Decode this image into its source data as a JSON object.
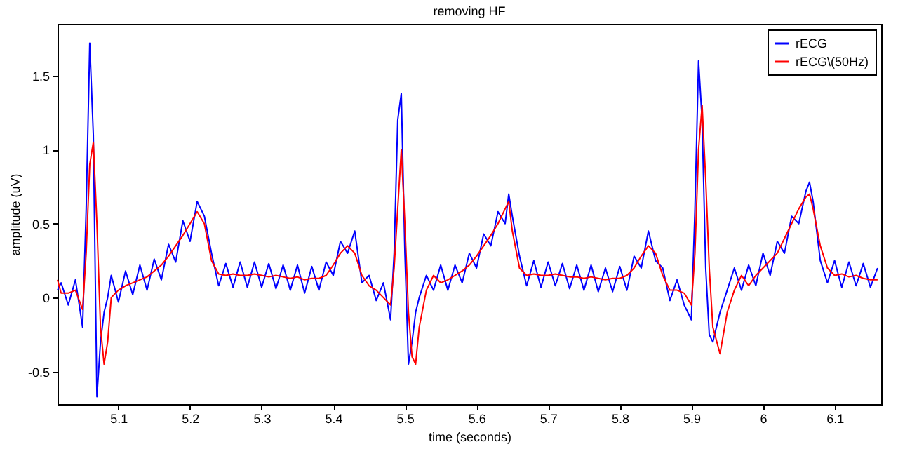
{
  "chart_data": {
    "type": "line",
    "title": "removing HF",
    "xlabel": "time (seconds)",
    "ylabel": "amplitude (uV)",
    "xlim": [
      5.015,
      6.165
    ],
    "xticks": [
      5.1,
      5.2,
      5.3,
      5.4,
      5.5,
      5.6,
      5.7,
      5.8,
      5.9,
      6,
      6.1
    ],
    "ylim": [
      -0.72,
      1.85
    ],
    "yticks": [
      -0.5,
      0,
      0.5,
      1,
      1.5
    ],
    "grid": false,
    "legend": "top right",
    "marker": "none",
    "line_style": "solid",
    "series": [
      {
        "name": "rECG",
        "color": "#0000ff",
        "x": [
          5.015,
          5.02,
          5.03,
          5.04,
          5.05,
          5.055,
          5.06,
          5.065,
          5.07,
          5.075,
          5.08,
          5.085,
          5.09,
          5.1,
          5.11,
          5.12,
          5.13,
          5.14,
          5.15,
          5.16,
          5.17,
          5.18,
          5.19,
          5.2,
          5.21,
          5.22,
          5.23,
          5.24,
          5.25,
          5.26,
          5.27,
          5.28,
          5.29,
          5.3,
          5.31,
          5.32,
          5.33,
          5.34,
          5.35,
          5.36,
          5.37,
          5.38,
          5.39,
          5.4,
          5.41,
          5.42,
          5.43,
          5.44,
          5.45,
          5.46,
          5.47,
          5.48,
          5.485,
          5.49,
          5.495,
          5.5,
          5.505,
          5.51,
          5.515,
          5.52,
          5.53,
          5.54,
          5.55,
          5.56,
          5.57,
          5.58,
          5.59,
          5.6,
          5.61,
          5.62,
          5.63,
          5.64,
          5.645,
          5.65,
          5.66,
          5.67,
          5.68,
          5.69,
          5.7,
          5.71,
          5.72,
          5.73,
          5.74,
          5.75,
          5.76,
          5.77,
          5.78,
          5.79,
          5.8,
          5.81,
          5.82,
          5.83,
          5.84,
          5.85,
          5.86,
          5.87,
          5.88,
          5.89,
          5.9,
          5.905,
          5.91,
          5.915,
          5.92,
          5.925,
          5.93,
          5.94,
          5.95,
          5.96,
          5.97,
          5.98,
          5.99,
          6.0,
          6.01,
          6.02,
          6.03,
          6.04,
          6.05,
          6.06,
          6.065,
          6.07,
          6.08,
          6.09,
          6.1,
          6.11,
          6.12,
          6.13,
          6.14,
          6.15,
          6.16
        ],
        "values": [
          0.05,
          0.1,
          -0.05,
          0.12,
          -0.2,
          0.6,
          1.72,
          1.1,
          -0.67,
          -0.3,
          -0.1,
          0.0,
          0.15,
          -0.03,
          0.18,
          0.02,
          0.22,
          0.05,
          0.26,
          0.12,
          0.36,
          0.24,
          0.52,
          0.38,
          0.65,
          0.55,
          0.3,
          0.08,
          0.23,
          0.07,
          0.24,
          0.07,
          0.24,
          0.07,
          0.23,
          0.06,
          0.22,
          0.05,
          0.22,
          0.03,
          0.21,
          0.05,
          0.24,
          0.15,
          0.38,
          0.3,
          0.45,
          0.1,
          0.15,
          -0.02,
          0.1,
          -0.15,
          0.3,
          1.2,
          1.38,
          0.3,
          -0.45,
          -0.3,
          -0.1,
          0.0,
          0.15,
          0.05,
          0.22,
          0.05,
          0.22,
          0.1,
          0.3,
          0.2,
          0.43,
          0.35,
          0.58,
          0.5,
          0.7,
          0.55,
          0.28,
          0.08,
          0.25,
          0.07,
          0.24,
          0.08,
          0.23,
          0.06,
          0.22,
          0.05,
          0.22,
          0.04,
          0.2,
          0.04,
          0.21,
          0.05,
          0.28,
          0.2,
          0.45,
          0.25,
          0.2,
          -0.02,
          0.12,
          -0.05,
          -0.15,
          0.6,
          1.6,
          1.2,
          0.2,
          -0.25,
          -0.3,
          -0.1,
          0.05,
          0.2,
          0.05,
          0.22,
          0.08,
          0.3,
          0.15,
          0.38,
          0.3,
          0.55,
          0.5,
          0.72,
          0.78,
          0.65,
          0.25,
          0.1,
          0.25,
          0.07,
          0.24,
          0.08,
          0.23,
          0.07,
          0.2
        ]
      },
      {
        "name": "rECG\\(50Hz)",
        "color": "#ff0000",
        "x": [
          5.015,
          5.02,
          5.03,
          5.04,
          5.05,
          5.055,
          5.06,
          5.065,
          5.07,
          5.075,
          5.08,
          5.085,
          5.09,
          5.1,
          5.11,
          5.12,
          5.13,
          5.14,
          5.15,
          5.16,
          5.17,
          5.18,
          5.19,
          5.2,
          5.21,
          5.22,
          5.23,
          5.24,
          5.25,
          5.26,
          5.27,
          5.28,
          5.29,
          5.3,
          5.31,
          5.32,
          5.33,
          5.34,
          5.35,
          5.36,
          5.37,
          5.38,
          5.39,
          5.4,
          5.41,
          5.42,
          5.43,
          5.44,
          5.45,
          5.46,
          5.47,
          5.48,
          5.485,
          5.49,
          5.495,
          5.5,
          5.505,
          5.51,
          5.515,
          5.52,
          5.53,
          5.54,
          5.55,
          5.56,
          5.57,
          5.58,
          5.59,
          5.6,
          5.61,
          5.62,
          5.63,
          5.64,
          5.645,
          5.65,
          5.66,
          5.67,
          5.68,
          5.69,
          5.7,
          5.71,
          5.72,
          5.73,
          5.74,
          5.75,
          5.76,
          5.77,
          5.78,
          5.79,
          5.8,
          5.81,
          5.82,
          5.83,
          5.84,
          5.85,
          5.86,
          5.87,
          5.88,
          5.89,
          5.9,
          5.905,
          5.91,
          5.915,
          5.92,
          5.925,
          5.93,
          5.94,
          5.95,
          5.96,
          5.97,
          5.98,
          5.99,
          6.0,
          6.01,
          6.02,
          6.03,
          6.04,
          6.05,
          6.06,
          6.065,
          6.07,
          6.08,
          6.09,
          6.1,
          6.11,
          6.12,
          6.13,
          6.14,
          6.15,
          6.16
        ],
        "values": [
          0.12,
          0.03,
          0.03,
          0.05,
          -0.08,
          0.3,
          0.9,
          1.05,
          0.5,
          -0.2,
          -0.45,
          -0.3,
          0.0,
          0.05,
          0.08,
          0.1,
          0.12,
          0.14,
          0.18,
          0.22,
          0.28,
          0.35,
          0.42,
          0.5,
          0.58,
          0.5,
          0.25,
          0.16,
          0.15,
          0.16,
          0.15,
          0.15,
          0.16,
          0.15,
          0.14,
          0.15,
          0.14,
          0.13,
          0.14,
          0.12,
          0.13,
          0.13,
          0.15,
          0.22,
          0.3,
          0.35,
          0.3,
          0.15,
          0.08,
          0.05,
          0.0,
          -0.05,
          0.2,
          0.6,
          1.0,
          0.5,
          -0.1,
          -0.4,
          -0.45,
          -0.2,
          0.05,
          0.15,
          0.1,
          0.12,
          0.15,
          0.18,
          0.22,
          0.28,
          0.35,
          0.42,
          0.5,
          0.6,
          0.65,
          0.45,
          0.2,
          0.15,
          0.16,
          0.15,
          0.15,
          0.16,
          0.15,
          0.14,
          0.14,
          0.13,
          0.14,
          0.13,
          0.12,
          0.13,
          0.13,
          0.15,
          0.2,
          0.28,
          0.35,
          0.3,
          0.15,
          0.05,
          0.05,
          0.03,
          -0.05,
          0.3,
          1.0,
          1.3,
          0.8,
          0.2,
          -0.2,
          -0.38,
          -0.1,
          0.05,
          0.15,
          0.08,
          0.15,
          0.2,
          0.25,
          0.3,
          0.4,
          0.5,
          0.6,
          0.68,
          0.7,
          0.6,
          0.35,
          0.2,
          0.15,
          0.16,
          0.14,
          0.15,
          0.13,
          0.12,
          0.12
        ]
      }
    ]
  }
}
